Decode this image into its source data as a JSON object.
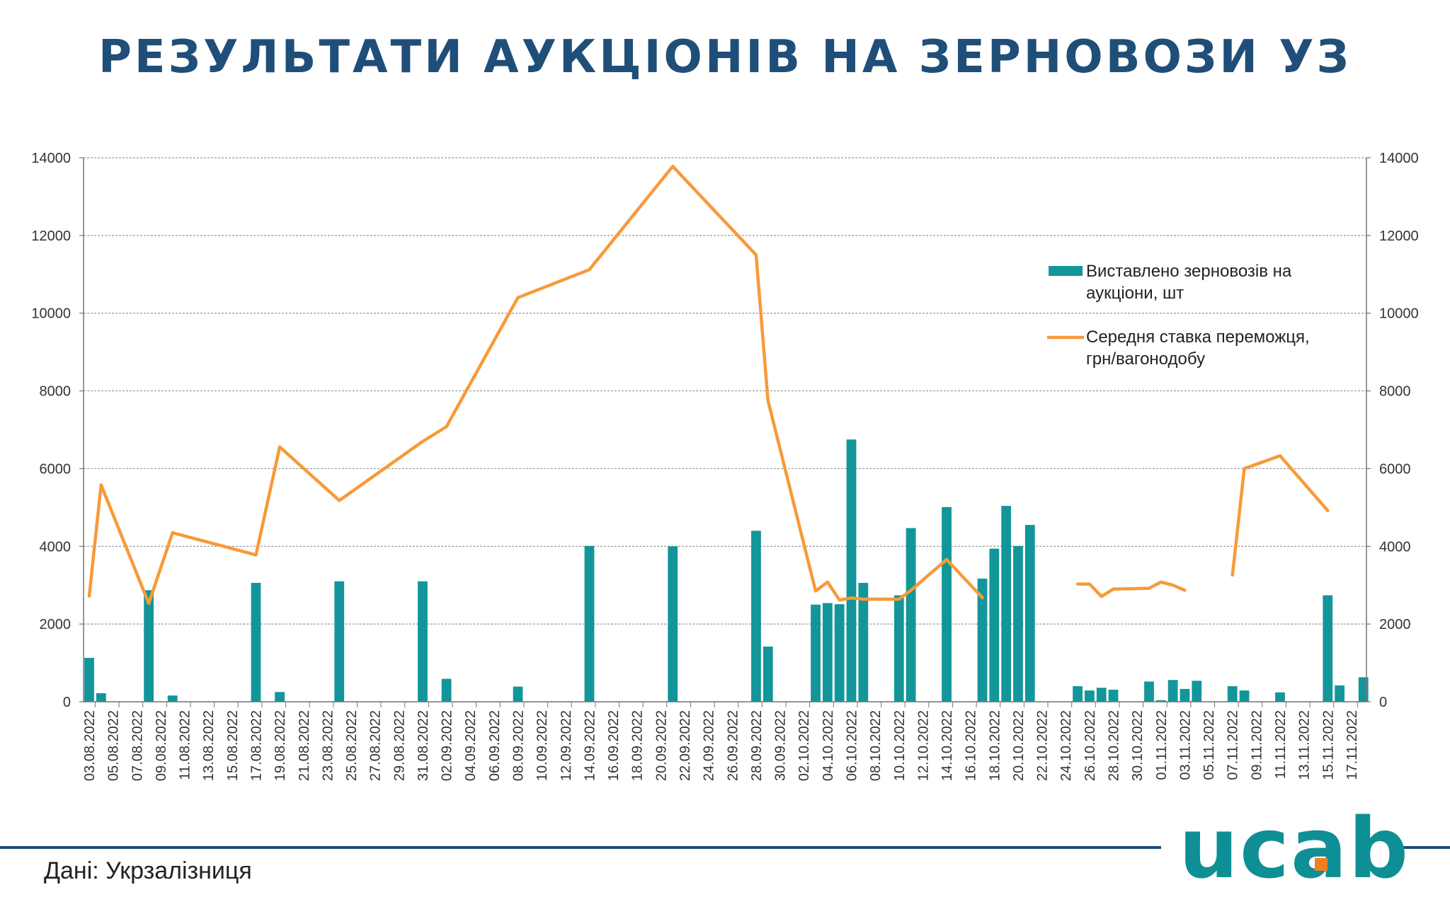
{
  "title": "РЕЗУЛЬТАТИ АУКЦІОНІВ НА ЗЕРНОВОЗИ УЗ",
  "source": "Дані: Укрзалізниця",
  "logo": "ucab",
  "colors": {
    "bars": "#12969a",
    "line": "#f79a38",
    "title": "#1f4e79",
    "brand": "#0e8f95",
    "brand_accent": "#f07f22"
  },
  "chart_data": {
    "type": "bar",
    "title": "",
    "y_ticks": [
      "0",
      "2000",
      "4000",
      "6000",
      "8000",
      "10000",
      "12000",
      "14000"
    ],
    "ylim": [
      0,
      14000
    ],
    "y2lim": [
      0,
      14000
    ],
    "grid": true,
    "legend_position": "right",
    "x_tick_labels": [
      "03.08.2022",
      "05.08.2022",
      "07.08.2022",
      "09.08.2022",
      "11.08.2022",
      "13.08.2022",
      "15.08.2022",
      "17.08.2022",
      "19.08.2022",
      "21.08.2022",
      "23.08.2022",
      "25.08.2022",
      "27.08.2022",
      "29.08.2022",
      "31.08.2022",
      "02.09.2022",
      "04.09.2022",
      "06.09.2022",
      "08.09.2022",
      "10.09.2022",
      "12.09.2022",
      "14.09.2022",
      "16.09.2022",
      "18.09.2022",
      "20.09.2022",
      "22.09.2022",
      "24.09.2022",
      "26.09.2022",
      "28.09.2022",
      "30.09.2022",
      "02.10.2022",
      "04.10.2022",
      "06.10.2022",
      "08.10.2022",
      "10.10.2022",
      "12.10.2022",
      "14.10.2022",
      "16.10.2022",
      "18.10.2022",
      "20.10.2022",
      "22.10.2022",
      "24.10.2022",
      "26.10.2022",
      "28.10.2022",
      "30.10.2022",
      "01.11.2022",
      "03.11.2022",
      "05.11.2022",
      "07.11.2022",
      "09.11.2022",
      "11.11.2022",
      "13.11.2022",
      "15.11.2022",
      "17.11.2022"
    ],
    "series": [
      {
        "name": "Виставлено зерновозів на аукціони, шт",
        "type": "bar",
        "points": [
          {
            "x": "03.08.2022",
            "y": 1130
          },
          {
            "x": "04.08.2022",
            "y": 220
          },
          {
            "x": "08.08.2022",
            "y": 2870
          },
          {
            "x": "10.08.2022",
            "y": 160
          },
          {
            "x": "17.08.2022",
            "y": 3060
          },
          {
            "x": "19.08.2022",
            "y": 250
          },
          {
            "x": "24.08.2022",
            "y": 3100
          },
          {
            "x": "31.08.2022",
            "y": 3100
          },
          {
            "x": "02.09.2022",
            "y": 590
          },
          {
            "x": "08.09.2022",
            "y": 390
          },
          {
            "x": "14.09.2022",
            "y": 4010
          },
          {
            "x": "21.09.2022",
            "y": 4000
          },
          {
            "x": "28.09.2022",
            "y": 4400
          },
          {
            "x": "29.09.2022",
            "y": 1420
          },
          {
            "x": "03.10.2022",
            "y": 2500
          },
          {
            "x": "04.10.2022",
            "y": 2540
          },
          {
            "x": "05.10.2022",
            "y": 2510
          },
          {
            "x": "06.10.2022",
            "y": 6750
          },
          {
            "x": "07.10.2022",
            "y": 3060
          },
          {
            "x": "10.10.2022",
            "y": 2740
          },
          {
            "x": "11.10.2022",
            "y": 4470
          },
          {
            "x": "14.10.2022",
            "y": 5010
          },
          {
            "x": "17.10.2022",
            "y": 3170
          },
          {
            "x": "18.10.2022",
            "y": 3940
          },
          {
            "x": "19.10.2022",
            "y": 5040
          },
          {
            "x": "20.10.2022",
            "y": 4010
          },
          {
            "x": "21.10.2022",
            "y": 4550
          },
          {
            "x": "25.10.2022",
            "y": 400
          },
          {
            "x": "26.10.2022",
            "y": 290
          },
          {
            "x": "27.10.2022",
            "y": 360
          },
          {
            "x": "28.10.2022",
            "y": 310
          },
          {
            "x": "31.10.2022",
            "y": 520
          },
          {
            "x": "01.11.2022",
            "y": 40
          },
          {
            "x": "02.11.2022",
            "y": 560
          },
          {
            "x": "03.11.2022",
            "y": 330
          },
          {
            "x": "04.11.2022",
            "y": 540
          },
          {
            "x": "07.11.2022",
            "y": 400
          },
          {
            "x": "08.11.2022",
            "y": 290
          },
          {
            "x": "11.11.2022",
            "y": 240
          },
          {
            "x": "15.11.2022",
            "y": 2740
          },
          {
            "x": "16.11.2022",
            "y": 420
          },
          {
            "x": "18.11.2022",
            "y": 630
          }
        ]
      },
      {
        "name": "Середня ставка переможця, грн/вагонодобу",
        "type": "line",
        "segments": [
          [
            {
              "x": "03.08.2022",
              "y": 2720
            },
            {
              "x": "04.08.2022",
              "y": 5580
            },
            {
              "x": "08.08.2022",
              "y": 2530
            },
            {
              "x": "10.08.2022",
              "y": 4350
            },
            {
              "x": "17.08.2022",
              "y": 3780
            },
            {
              "x": "19.08.2022",
              "y": 6560
            },
            {
              "x": "24.08.2022",
              "y": 5180
            },
            {
              "x": "31.08.2022",
              "y": 6700
            },
            {
              "x": "02.09.2022",
              "y": 7080
            },
            {
              "x": "08.09.2022",
              "y": 10400
            },
            {
              "x": "14.09.2022",
              "y": 11120
            },
            {
              "x": "21.09.2022",
              "y": 13780
            },
            {
              "x": "28.09.2022",
              "y": 11500
            },
            {
              "x": "29.09.2022",
              "y": 7750
            },
            {
              "x": "03.10.2022",
              "y": 2850
            },
            {
              "x": "04.10.2022",
              "y": 3080
            },
            {
              "x": "05.10.2022",
              "y": 2620
            },
            {
              "x": "06.10.2022",
              "y": 2670
            },
            {
              "x": "07.10.2022",
              "y": 2640
            },
            {
              "x": "10.10.2022",
              "y": 2640
            },
            {
              "x": "11.10.2022",
              "y": 2870
            },
            {
              "x": "14.10.2022",
              "y": 3660
            },
            {
              "x": "17.10.2022",
              "y": 2680
            }
          ],
          [
            {
              "x": "25.10.2022",
              "y": 3030
            },
            {
              "x": "26.10.2022",
              "y": 3030
            },
            {
              "x": "27.10.2022",
              "y": 2710
            },
            {
              "x": "28.10.2022",
              "y": 2900
            },
            {
              "x": "31.10.2022",
              "y": 2920
            },
            {
              "x": "01.11.2022",
              "y": 3080
            },
            {
              "x": "02.11.2022",
              "y": 3000
            },
            {
              "x": "03.11.2022",
              "y": 2870
            }
          ],
          [
            {
              "x": "07.11.2022",
              "y": 3260
            },
            {
              "x": "08.11.2022",
              "y": 6000
            },
            {
              "x": "11.11.2022",
              "y": 6330
            },
            {
              "x": "15.11.2022",
              "y": 4920
            }
          ]
        ]
      }
    ]
  }
}
